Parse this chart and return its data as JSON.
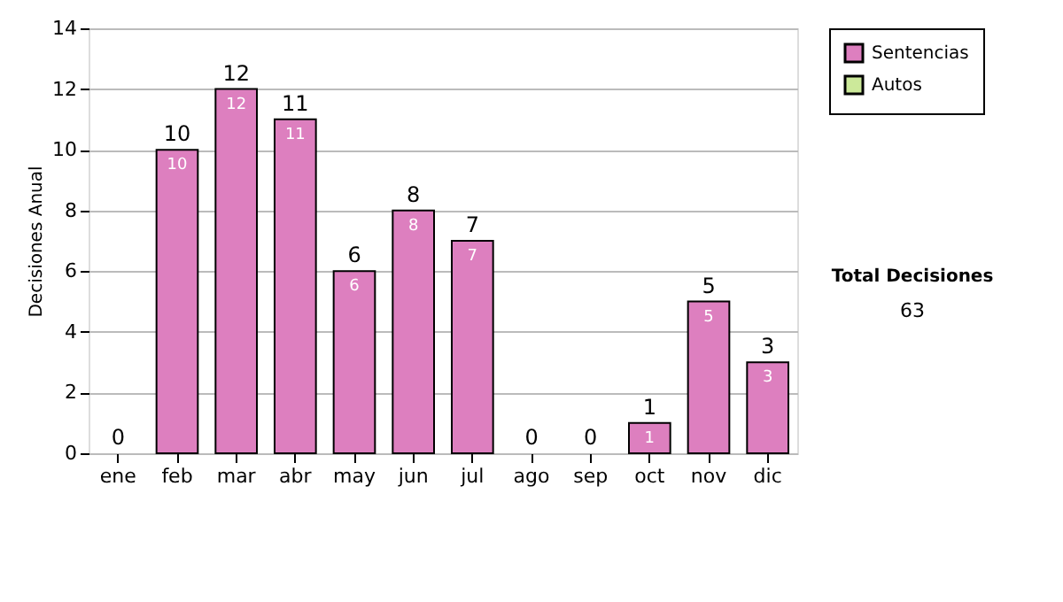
{
  "chart_data": {
    "type": "bar",
    "stacked": true,
    "ylabel": "Decisiones Anual",
    "categories": [
      "ene",
      "feb",
      "mar",
      "abr",
      "may",
      "jun",
      "jul",
      "ago",
      "sep",
      "oct",
      "nov",
      "dic"
    ],
    "series": [
      {
        "name": "Sentencias",
        "color": "#dd7fbf",
        "values": [
          0,
          10,
          12,
          11,
          6,
          8,
          7,
          0,
          0,
          1,
          5,
          3
        ],
        "value_labels": [
          null,
          "10",
          "12",
          "11",
          "6",
          "8",
          "7",
          null,
          null,
          "1",
          "5",
          "3"
        ]
      },
      {
        "name": "Autos",
        "color": "#cce99a",
        "values": [
          0,
          0,
          0,
          0,
          0,
          0,
          0,
          0,
          0,
          0,
          0,
          0
        ]
      }
    ],
    "totals": [
      "0",
      "10",
      "12",
      "11",
      "6",
      "8",
      "7",
      "0",
      "0",
      "1",
      "5",
      "3"
    ],
    "ylim": [
      0,
      14
    ],
    "yticks": [
      0,
      2,
      4,
      6,
      8,
      10,
      12,
      14
    ],
    "grid": "y",
    "legend": "right",
    "annotations": [
      "Total Decisiones",
      "63"
    ]
  }
}
